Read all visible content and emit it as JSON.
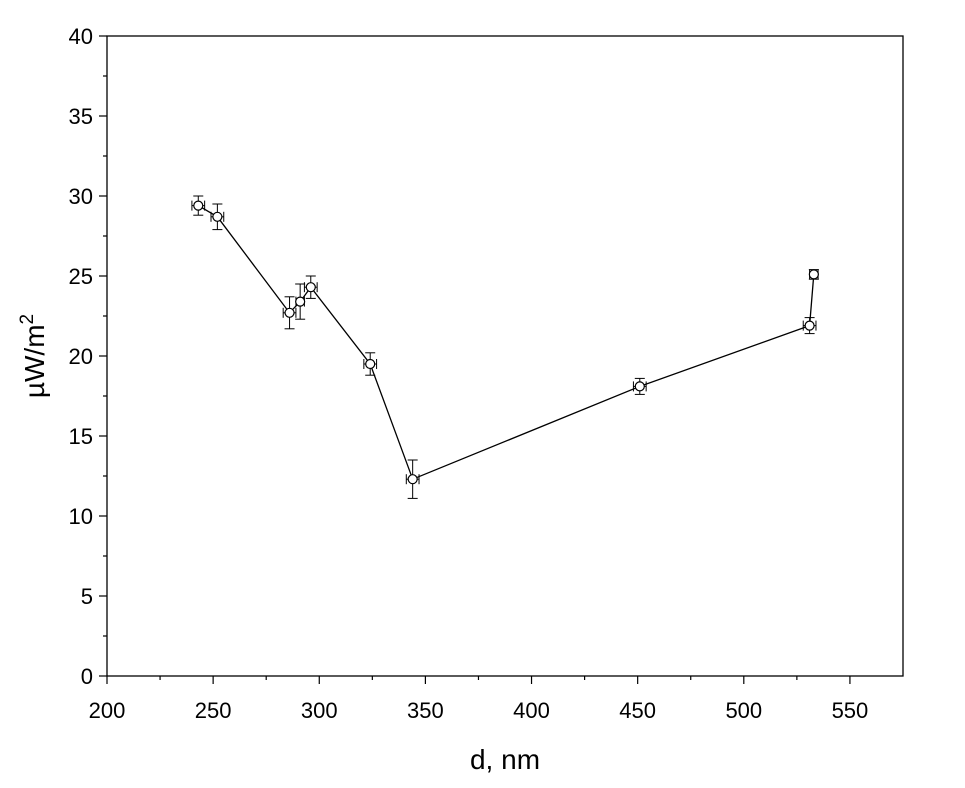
{
  "chart_data": {
    "type": "line",
    "title": "",
    "xlabel": "d, nm",
    "ylabel_main": "µW/m",
    "ylabel_sup": "2",
    "xlim": [
      200,
      575
    ],
    "ylim": [
      0,
      40
    ],
    "xticks": [
      200,
      250,
      300,
      350,
      400,
      450,
      500,
      550
    ],
    "xtick_labels": [
      "200",
      "250",
      "300",
      "350",
      "400",
      "450",
      "500",
      "550"
    ],
    "yticks": [
      0,
      5,
      10,
      15,
      20,
      25,
      30,
      35,
      40
    ],
    "ytick_labels": [
      "0",
      "5",
      "10",
      "15",
      "20",
      "25",
      "30",
      "35",
      "40"
    ],
    "grid": false,
    "marker": "open-circle",
    "series": [
      {
        "points": [
          {
            "x": 243,
            "y": 29.4,
            "xerr": 3,
            "yerr": 0.6
          },
          {
            "x": 252,
            "y": 28.7,
            "xerr": 3,
            "yerr": 0.8
          },
          {
            "x": 286,
            "y": 22.7,
            "xerr": 3,
            "yerr": 1.0
          },
          {
            "x": 291,
            "y": 23.4,
            "xerr": 2,
            "yerr": 1.1
          },
          {
            "x": 296,
            "y": 24.3,
            "xerr": 3,
            "yerr": 0.7
          },
          {
            "x": 324,
            "y": 19.5,
            "xerr": 3,
            "yerr": 0.7
          },
          {
            "x": 344,
            "y": 12.3,
            "xerr": 3,
            "yerr": 1.2
          },
          {
            "x": 451,
            "y": 18.1,
            "xerr": 3,
            "yerr": 0.5
          },
          {
            "x": 531,
            "y": 21.9,
            "xerr": 3,
            "yerr": 0.5
          },
          {
            "x": 533,
            "y": 25.1,
            "xerr": 2,
            "yerr": 0.3
          }
        ]
      }
    ]
  }
}
